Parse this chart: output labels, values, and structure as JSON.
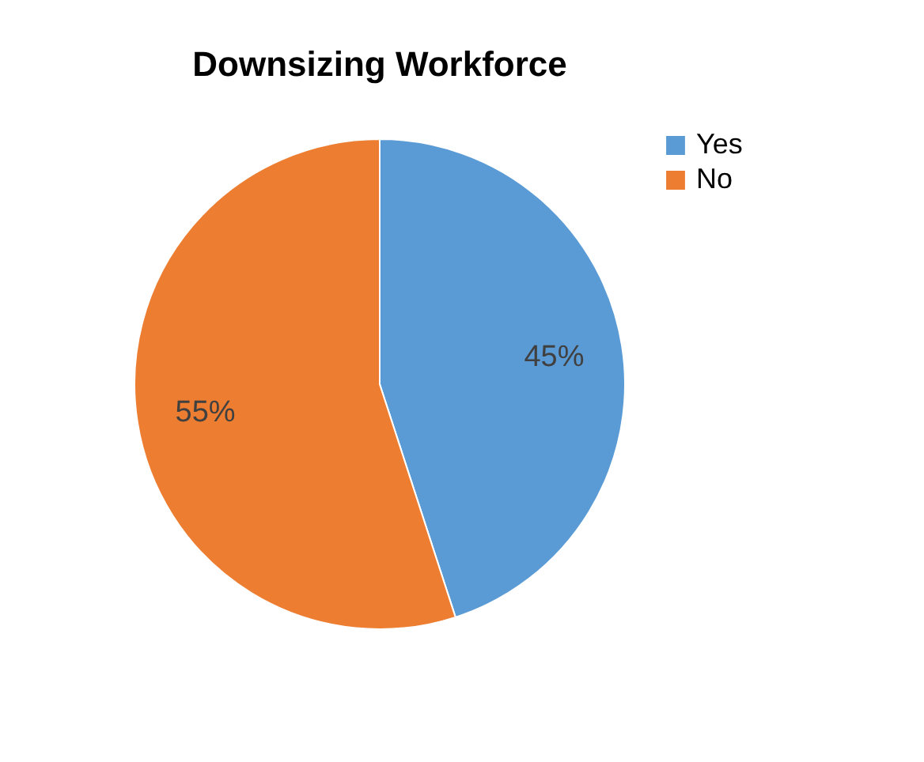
{
  "chart_data": {
    "type": "pie",
    "title": "Downsizing Workforce",
    "categories": [
      "Yes",
      "No"
    ],
    "values": [
      45,
      55
    ],
    "colors": [
      "#5b9bd5",
      "#ed7d31"
    ],
    "value_labels": [
      "45%",
      "55%"
    ],
    "legend": "right"
  }
}
